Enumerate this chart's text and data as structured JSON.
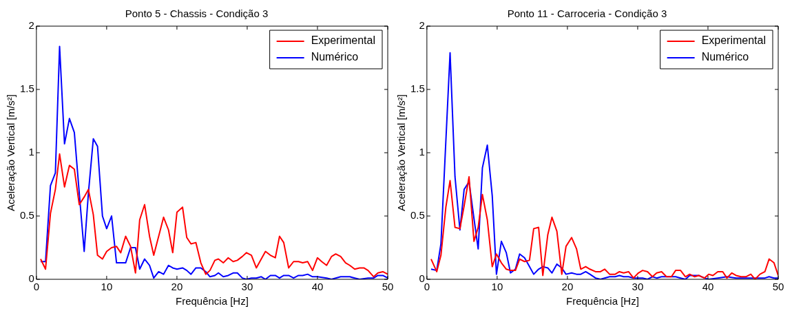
{
  "chart_data": [
    {
      "type": "line",
      "title": "Ponto 5 - Chassis - Condição 3",
      "xlabel": "Frequência [Hz]",
      "ylabel": "Aceleração Vertical [m/s²]",
      "xlim": [
        0,
        50
      ],
      "xticks": [
        0,
        10,
        20,
        30,
        40,
        50
      ],
      "ylim": [
        0,
        2
      ],
      "yticks": [
        0,
        0.5,
        1,
        1.5,
        2
      ],
      "grid": false,
      "legend": "top right",
      "marker": "none",
      "line_style": "solid",
      "series": [
        {
          "name": "Experimental",
          "color": "#ff0000",
          "x": [
            0.6,
            1.3,
            2.0,
            2.7,
            3.3,
            4.0,
            4.7,
            5.4,
            6.1,
            6.8,
            7.4,
            8.1,
            8.7,
            9.4,
            10.0,
            10.7,
            11.4,
            12.0,
            12.7,
            13.4,
            14.1,
            14.7,
            15.4,
            16.1,
            16.7,
            17.4,
            18.1,
            18.8,
            19.4,
            20.0,
            20.8,
            21.4,
            22.0,
            22.7,
            23.4,
            24.1,
            24.7,
            25.4,
            25.9,
            26.6,
            27.3,
            28.0,
            28.6,
            29.3,
            29.9,
            30.6,
            31.3,
            32.0,
            32.6,
            33.3,
            34.0,
            34.6,
            35.2,
            35.9,
            36.6,
            37.3,
            37.9,
            38.6,
            39.3,
            40.0,
            40.6,
            41.3,
            42.0,
            42.6,
            43.3,
            44.0,
            44.6,
            45.3,
            46.0,
            46.6,
            47.2,
            48.0,
            48.6,
            49.3,
            50.0
          ],
          "values": [
            0.16,
            0.08,
            0.52,
            0.71,
            0.99,
            0.73,
            0.9,
            0.87,
            0.59,
            0.65,
            0.71,
            0.51,
            0.19,
            0.16,
            0.22,
            0.25,
            0.26,
            0.21,
            0.34,
            0.26,
            0.05,
            0.47,
            0.59,
            0.34,
            0.19,
            0.34,
            0.49,
            0.39,
            0.21,
            0.53,
            0.57,
            0.33,
            0.28,
            0.29,
            0.13,
            0.04,
            0.07,
            0.15,
            0.16,
            0.13,
            0.17,
            0.14,
            0.15,
            0.18,
            0.21,
            0.19,
            0.09,
            0.16,
            0.22,
            0.19,
            0.17,
            0.34,
            0.29,
            0.09,
            0.14,
            0.14,
            0.13,
            0.14,
            0.07,
            0.17,
            0.14,
            0.11,
            0.18,
            0.2,
            0.18,
            0.13,
            0.11,
            0.08,
            0.09,
            0.09,
            0.07,
            0.02,
            0.05,
            0.06,
            0.04
          ]
        },
        {
          "name": "Numérico",
          "color": "#0000ff",
          "x": [
            0.6,
            1.3,
            2.0,
            2.7,
            3.3,
            4.0,
            4.7,
            5.4,
            6.1,
            6.8,
            7.4,
            8.1,
            8.7,
            9.4,
            10.0,
            10.7,
            11.4,
            12.0,
            12.7,
            13.4,
            14.1,
            14.7,
            15.4,
            16.1,
            16.7,
            17.4,
            18.1,
            18.8,
            19.4,
            20.0,
            20.8,
            21.4,
            22.0,
            22.7,
            23.4,
            24.1,
            24.7,
            25.4,
            25.9,
            26.6,
            27.3,
            28.0,
            28.6,
            29.3,
            29.9,
            30.6,
            31.3,
            32.0,
            32.6,
            33.3,
            34.0,
            34.6,
            35.2,
            35.9,
            36.6,
            37.3,
            37.9,
            38.6,
            39.3,
            40.0,
            41.3,
            42.0,
            43.3,
            44.0,
            44.6,
            45.3,
            46.0,
            47.2,
            48.0,
            48.6,
            49.3,
            50.0
          ],
          "values": [
            0.14,
            0.14,
            0.74,
            0.84,
            1.84,
            1.07,
            1.27,
            1.16,
            0.68,
            0.22,
            0.68,
            1.11,
            1.05,
            0.5,
            0.4,
            0.5,
            0.13,
            0.13,
            0.13,
            0.25,
            0.25,
            0.08,
            0.16,
            0.11,
            0.01,
            0.06,
            0.04,
            0.11,
            0.09,
            0.08,
            0.09,
            0.07,
            0.04,
            0.09,
            0.09,
            0.06,
            0.02,
            0.03,
            0.05,
            0.02,
            0.03,
            0.05,
            0.05,
            0.01,
            0.0,
            0.01,
            0.01,
            0.02,
            0.0,
            0.03,
            0.03,
            0.01,
            0.03,
            0.03,
            0.01,
            0.03,
            0.03,
            0.04,
            0.02,
            0.02,
            0.01,
            0.0,
            0.02,
            0.02,
            0.02,
            0.01,
            0.0,
            0.01,
            0.01,
            0.03,
            0.03,
            0.01
          ]
        }
      ]
    },
    {
      "type": "line",
      "title": "Ponto 11 - Carroceria - Condição 3",
      "xlabel": "Frequência [Hz]",
      "ylabel": "Aceleração Vertical [m/s²]",
      "xlim": [
        0,
        50
      ],
      "xticks": [
        0,
        10,
        20,
        30,
        40,
        50
      ],
      "ylim": [
        0,
        2
      ],
      "yticks": [
        0,
        0.5,
        1,
        1.5,
        2
      ],
      "grid": false,
      "legend": "top right",
      "marker": "none",
      "line_style": "solid",
      "series": [
        {
          "name": "Experimental",
          "color": "#ff0000",
          "x": [
            0.6,
            1.4,
            2.0,
            2.7,
            3.3,
            4.0,
            4.7,
            5.3,
            6.0,
            6.7,
            7.3,
            7.9,
            8.6,
            9.3,
            9.9,
            10.6,
            11.3,
            11.9,
            12.6,
            13.2,
            13.9,
            14.6,
            15.2,
            15.9,
            16.5,
            17.2,
            17.8,
            18.5,
            19.2,
            19.8,
            20.6,
            21.3,
            21.9,
            22.6,
            23.2,
            24.0,
            24.7,
            25.3,
            26.0,
            26.8,
            27.4,
            28.0,
            28.7,
            29.4,
            30.1,
            30.7,
            31.4,
            32.1,
            32.7,
            33.4,
            34.1,
            34.8,
            35.4,
            36.1,
            36.8,
            37.4,
            38.1,
            38.7,
            39.5,
            40.1,
            40.7,
            41.4,
            42.1,
            42.7,
            43.4,
            44.0,
            44.7,
            45.4,
            46.1,
            46.7,
            47.4,
            48.1,
            48.7,
            49.4,
            50.0
          ],
          "values": [
            0.16,
            0.06,
            0.19,
            0.57,
            0.78,
            0.41,
            0.4,
            0.58,
            0.81,
            0.3,
            0.41,
            0.67,
            0.47,
            0.1,
            0.2,
            0.13,
            0.08,
            0.07,
            0.07,
            0.16,
            0.14,
            0.15,
            0.4,
            0.41,
            0.03,
            0.35,
            0.49,
            0.38,
            0.04,
            0.26,
            0.33,
            0.24,
            0.08,
            0.1,
            0.08,
            0.06,
            0.06,
            0.08,
            0.04,
            0.04,
            0.06,
            0.05,
            0.06,
            0.01,
            0.05,
            0.07,
            0.06,
            0.02,
            0.05,
            0.06,
            0.02,
            0.02,
            0.07,
            0.07,
            0.02,
            0.04,
            0.02,
            0.03,
            0.01,
            0.04,
            0.03,
            0.06,
            0.06,
            0.01,
            0.05,
            0.03,
            0.02,
            0.02,
            0.04,
            0.0,
            0.04,
            0.06,
            0.16,
            0.13,
            0.03
          ]
        },
        {
          "name": "Numérico",
          "color": "#0000ff",
          "x": [
            0.6,
            1.4,
            2.0,
            3.3,
            4.0,
            4.7,
            5.3,
            6.0,
            6.7,
            7.3,
            7.9,
            8.6,
            9.3,
            9.9,
            10.6,
            11.3,
            11.9,
            12.6,
            13.2,
            13.9,
            14.6,
            15.2,
            15.9,
            16.5,
            17.2,
            17.8,
            18.5,
            19.2,
            19.8,
            20.6,
            21.3,
            21.9,
            22.6,
            23.2,
            24.0,
            24.7,
            25.3,
            26.0,
            26.8,
            27.4,
            28.0,
            28.7,
            29.4,
            30.7,
            31.4,
            32.1,
            32.7,
            33.4,
            34.8,
            35.4,
            36.1,
            36.8,
            37.4,
            38.1,
            38.7,
            39.5,
            40.1,
            41.4,
            42.7,
            44.0,
            45.4,
            46.7,
            48.1,
            48.7,
            49.4,
            50.0
          ],
          "values": [
            0.08,
            0.07,
            0.28,
            1.79,
            0.81,
            0.39,
            0.71,
            0.77,
            0.48,
            0.24,
            0.88,
            1.06,
            0.66,
            0.04,
            0.3,
            0.21,
            0.05,
            0.08,
            0.2,
            0.17,
            0.1,
            0.04,
            0.08,
            0.1,
            0.09,
            0.05,
            0.12,
            0.09,
            0.04,
            0.05,
            0.04,
            0.04,
            0.06,
            0.04,
            0.01,
            0.0,
            0.01,
            0.02,
            0.02,
            0.03,
            0.02,
            0.02,
            0.01,
            0.01,
            0.0,
            0.02,
            0.01,
            0.02,
            0.02,
            0.02,
            0.01,
            0.0,
            0.03,
            0.03,
            0.03,
            0.01,
            0.0,
            0.01,
            0.02,
            0.01,
            0.01,
            0.01,
            0.01,
            0.02,
            0.01,
            0.01
          ]
        }
      ]
    }
  ]
}
